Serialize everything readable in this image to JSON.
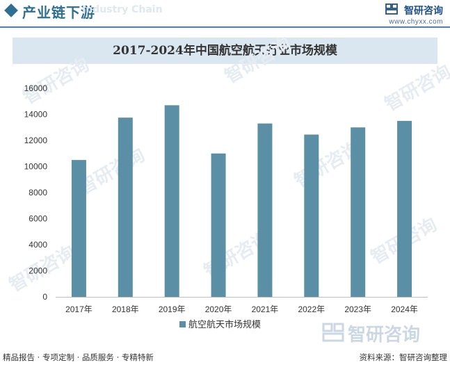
{
  "header": {
    "section_title": "产业链下游",
    "ghost_subtitle": "Industry Chain",
    "brand_name": "智研咨询",
    "brand_url": "www.chyxx.com"
  },
  "watermark": {
    "text": "智研咨询"
  },
  "chart_data": {
    "type": "bar",
    "title": "2017-2024年中国航空航天行业市场规模",
    "categories": [
      "2017年",
      "2018年",
      "2019年",
      "2020年",
      "2021年",
      "2022年",
      "2023年",
      "2024年"
    ],
    "series": [
      {
        "name": "航空航天市场规模",
        "values": [
          10500,
          13750,
          14700,
          11000,
          13300,
          12450,
          13000,
          13500
        ]
      }
    ],
    "yticks": [
      0,
      2000,
      4000,
      6000,
      8000,
      10000,
      12000,
      14000,
      16000
    ],
    "ylim": [
      0,
      16000
    ],
    "xlabel": "",
    "ylabel": "",
    "legend_position": "bottom",
    "bar_color": "#5b8fa5"
  },
  "footer": {
    "left_text": "精品报告 · 专项定制 · 品质服务 · 专精特新",
    "right_text": "资料来源：智研咨询整理"
  }
}
